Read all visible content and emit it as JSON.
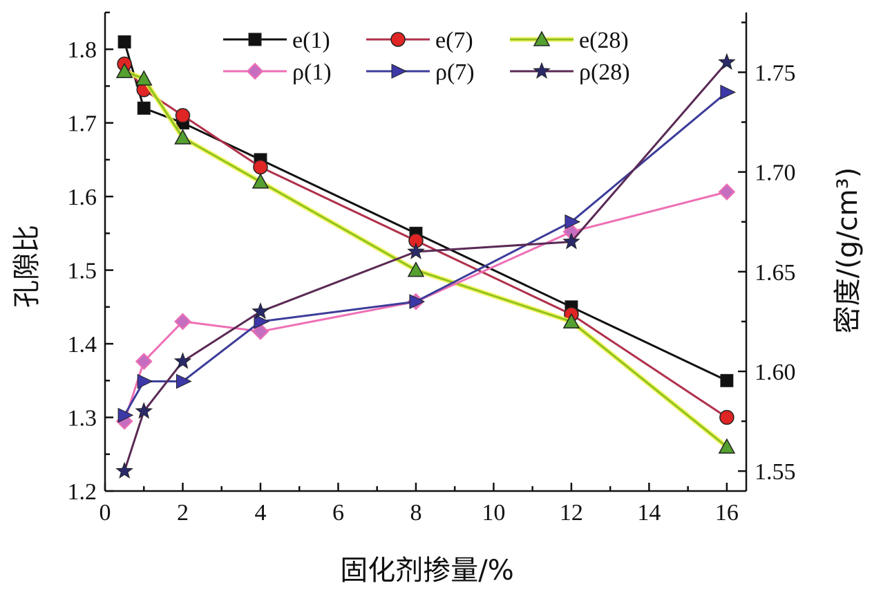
{
  "chart_data": {
    "type": "line",
    "xlabel": "固化剂掺量/%",
    "ylabel_left": "孔隙比",
    "ylabel_right": "密度/(g/cm³)",
    "xlim": [
      0,
      16.5
    ],
    "ylim_left": [
      1.2,
      1.85
    ],
    "ylim_right": [
      1.54,
      1.78
    ],
    "xticks": [
      "0",
      "2",
      "4",
      "6",
      "8",
      "10",
      "12",
      "14",
      "16"
    ],
    "yticks_left": [
      "1.2",
      "1.3",
      "1.4",
      "1.5",
      "1.6",
      "1.7",
      "1.8"
    ],
    "yticks_right": [
      "1.55",
      "1.60",
      "1.65",
      "1.70",
      "1.75"
    ],
    "grid": false,
    "legend_position": "top",
    "series": [
      {
        "name": "e(1)",
        "axis": "left",
        "marker": "square",
        "color": "#111111",
        "x": [
          0.5,
          1,
          2,
          4,
          8,
          12,
          16
        ],
        "y": [
          1.81,
          1.72,
          1.7,
          1.65,
          1.55,
          1.45,
          1.35
        ]
      },
      {
        "name": "e(7)",
        "axis": "left",
        "marker": "circle",
        "color": "#b0304a",
        "fill": "#e02525",
        "x": [
          0.5,
          1,
          2,
          4,
          8,
          12,
          16
        ],
        "y": [
          1.78,
          1.745,
          1.71,
          1.64,
          1.54,
          1.44,
          1.3
        ]
      },
      {
        "name": "e(28)",
        "axis": "left",
        "marker": "triangle",
        "color": "#8fc21f",
        "fill": "#55a030",
        "glow": "#f2f24a",
        "x": [
          0.5,
          1,
          2,
          4,
          8,
          12,
          16
        ],
        "y": [
          1.77,
          1.76,
          1.68,
          1.62,
          1.5,
          1.43,
          1.26
        ]
      },
      {
        "name": "ρ(1)",
        "axis": "right",
        "marker": "diamond",
        "color": "#ee6fb5",
        "fill": "#c56ec0",
        "x": [
          0.5,
          1,
          2,
          4,
          8,
          12,
          16
        ],
        "y": [
          1.575,
          1.605,
          1.625,
          1.62,
          1.635,
          1.67,
          1.69
        ]
      },
      {
        "name": "ρ(7)",
        "axis": "right",
        "marker": "triangle-right",
        "color": "#3c3c9a",
        "fill": "#3d38a8",
        "x": [
          0.5,
          1,
          2,
          4,
          8,
          12,
          16
        ],
        "y": [
          1.578,
          1.595,
          1.595,
          1.625,
          1.635,
          1.675,
          1.74
        ]
      },
      {
        "name": "ρ(28)",
        "axis": "right",
        "marker": "star",
        "color": "#5a2a55",
        "fill": "#2a2a6a",
        "x": [
          0.5,
          1,
          2,
          4,
          8,
          12,
          16
        ],
        "y": [
          1.55,
          1.58,
          1.605,
          1.63,
          1.66,
          1.665,
          1.755
        ]
      }
    ]
  }
}
